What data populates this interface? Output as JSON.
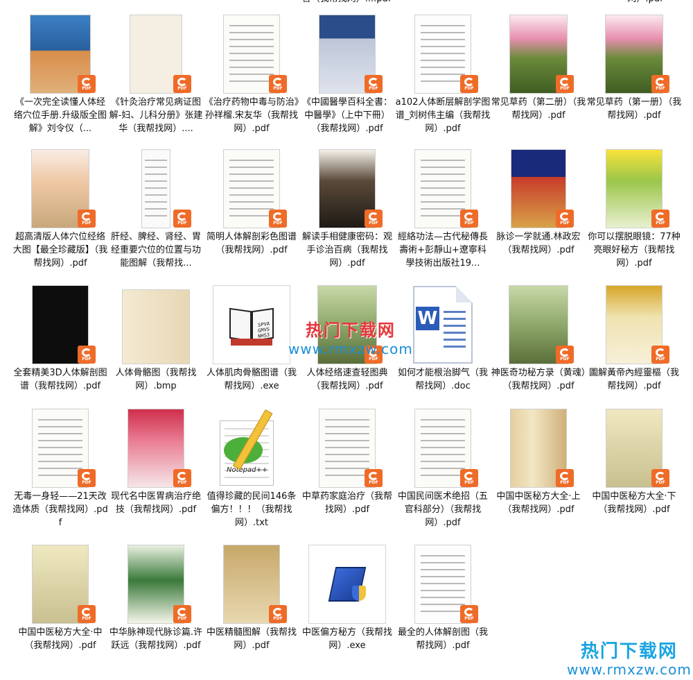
{
  "top_fragments": [
    {
      "id": "frag-col4",
      "text": "言（我帮找网）....pdf"
    },
    {
      "id": "frag-col7",
      "text": "网）.pdf"
    }
  ],
  "files": [
    {
      "label": "《一次完全读懂人体经络穴位手册.升级版全图解》刘令仪（...",
      "type": "pdf",
      "thumb": "cover-a"
    },
    {
      "label": "《针灸治疗常见病证图解-妇、儿科分册》张建华（我帮找网）....",
      "type": "pdf",
      "thumb": "cover-b"
    },
    {
      "label": "《治疗药物中毒与防治》孙祥榴.宋友华（我帮找网）.pdf",
      "type": "pdf",
      "thumb": "cover-c"
    },
    {
      "label": "《中國醫學百科全書：中醫學》（上中下冊）（我帮找网）.pdf",
      "type": "pdf",
      "thumb": "cover-d"
    },
    {
      "label": "a102人体断层解剖学图谱_刘树伟主编（我帮找网）.pdf",
      "type": "pdf",
      "thumb": "cover-e"
    },
    {
      "label": "常见草药（第二册）（我帮找网）.pdf",
      "type": "pdf",
      "thumb": "cover-f"
    },
    {
      "label": "常见草药（第一册）（我帮找网）.pdf",
      "type": "pdf",
      "thumb": "cover-f"
    },
    {
      "label": "超高清版人体穴位经络大图【最全珍藏版】（我帮找网）.pdf",
      "type": "pdf",
      "thumb": "cover-g"
    },
    {
      "label": "肝经、脾经、肾经、胃经重要穴位的位置与功能图解（我帮找...",
      "type": "pdf",
      "thumb": "cover-h"
    },
    {
      "label": "简明人体解剖彩色图谱（我帮找网）.pdf",
      "type": "pdf",
      "thumb": "cover-c"
    },
    {
      "label": "解读手相健康密码：观手诊治百病（我帮找网）.pdf",
      "type": "pdf",
      "thumb": "cover-i"
    },
    {
      "label": "經絡功法—古代秘傳長壽術+彭靜山+遼寧科學技術出版社19...",
      "type": "pdf",
      "thumb": "cover-c"
    },
    {
      "label": "脉诊一学就通.林政宏（我帮找网）.pdf",
      "type": "pdf",
      "thumb": "cover-j"
    },
    {
      "label": "你可以摆脱眼镜：77种亮眼好秘方（我帮找网）.pdf",
      "type": "pdf",
      "thumb": "cover-k"
    },
    {
      "label": "全套精美3D人体解剖图谱（我帮找网）.pdf",
      "type": "pdf",
      "thumb": "cover-l"
    },
    {
      "label": "人体骨骼图（我帮找网）.bmp",
      "type": "bmp",
      "thumb": "cover-m"
    },
    {
      "label": "人体肌肉骨骼图谱（我帮找网）.exe",
      "type": "exe",
      "thumb": "exe-book"
    },
    {
      "label": "人体经络速查轻图典（我帮找网）.pdf",
      "type": "pdf",
      "thumb": "cover-n"
    },
    {
      "label": "如何才能根治脚气（我帮找网）.doc",
      "type": "doc",
      "thumb": "word-doc"
    },
    {
      "label": "神医奇功秘方录（黄魂）（我帮找网）.pdf",
      "type": "pdf",
      "thumb": "cover-n"
    },
    {
      "label": "圖解黃帝內經靈樞（我帮找网）.pdf",
      "type": "pdf",
      "thumb": "cover-o"
    },
    {
      "label": "无毒一身轻——21天改造体质（我帮找网）.pdf",
      "type": "pdf",
      "thumb": "cover-c"
    },
    {
      "label": "现代名中医胃病治疗绝技（我帮找网）.pdf",
      "type": "pdf",
      "thumb": "cover-p"
    },
    {
      "label": "值得珍藏的民间146条偏方！！！（我帮找网）.txt",
      "type": "txt",
      "thumb": "notepad"
    },
    {
      "label": "中草药家庭治疗（我帮找网）.pdf",
      "type": "pdf",
      "thumb": "cover-c"
    },
    {
      "label": "中国民间医术绝招（五官科部分）（我帮找网）.pdf",
      "type": "pdf",
      "thumb": "cover-c"
    },
    {
      "label": "中国中医秘方大全·上（我帮找网）.pdf",
      "type": "pdf",
      "thumb": "cover-q"
    },
    {
      "label": "中国中医秘方大全·下（我帮找网）.pdf",
      "type": "pdf",
      "thumb": "cover-r"
    },
    {
      "label": "中国中医秘方大全·中（我帮找网）.pdf",
      "type": "pdf",
      "thumb": "cover-r"
    },
    {
      "label": "中华脉神现代脉诊篇.许跃远（我帮找网）.pdf",
      "type": "pdf",
      "thumb": "cover-s"
    },
    {
      "label": "中医精髓图解（我帮找网）.pdf",
      "type": "pdf",
      "thumb": "cover-t"
    },
    {
      "label": "中医偏方秘方（我帮找网）.exe",
      "type": "exe",
      "thumb": "setup"
    },
    {
      "label": "最全的人体解剖图（我帮找网）.pdf",
      "type": "pdf",
      "thumb": "cover-e"
    }
  ],
  "badge": {
    "pdf_text": "PDF",
    "color": "#ef6b28"
  },
  "exe_book_text": "SPVA\nGMVS\nNHS3",
  "notepad_text": "Notepad++",
  "word_letter": "W",
  "watermark_mid": {
    "line1": "热门下载网",
    "line2": "www.rmxzw.com"
  },
  "watermark_br": {
    "line1": "热门下载网",
    "line2": "www.rmxzw.com"
  }
}
